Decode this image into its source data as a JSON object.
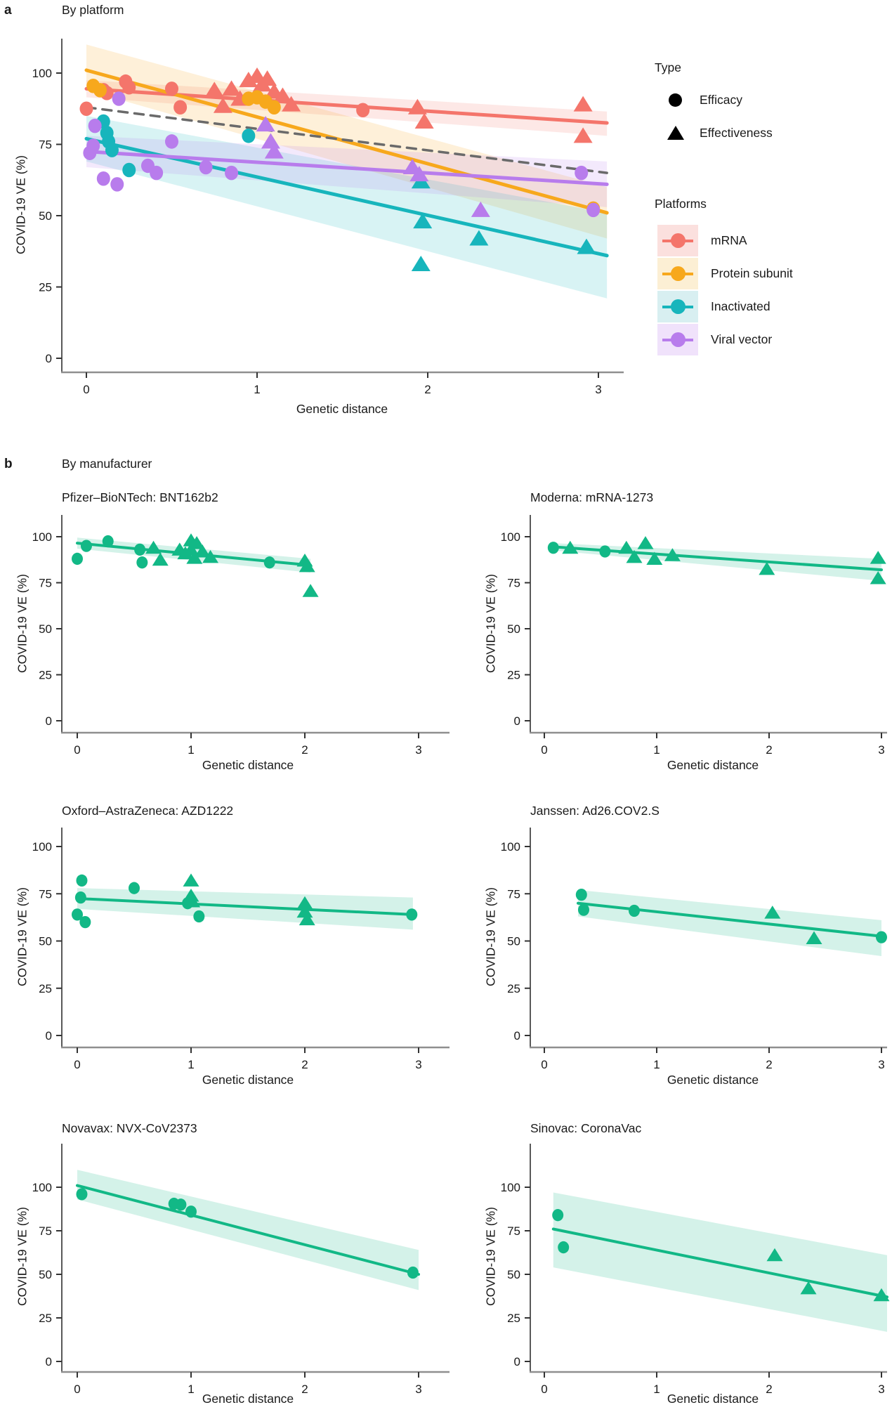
{
  "figure": {
    "panel_a": {
      "label": "a",
      "title": "By platform"
    },
    "panel_b": {
      "label": "b",
      "title": "By manufacturer"
    },
    "axis": {
      "x_label": "Genetic distance",
      "y_label": "COVID-19 VE (%)"
    },
    "legend": {
      "type": {
        "title": "Type",
        "items": [
          {
            "label": "Efficacy",
            "marker": "circle"
          },
          {
            "label": "Effectiveness",
            "marker": "triangle"
          }
        ]
      },
      "platforms": {
        "title": "Platforms",
        "items": [
          {
            "label": "mRNA",
            "color": "#F4756B",
            "bg": "#FBE0DE"
          },
          {
            "label": "Protein subunit",
            "color": "#F7A81C",
            "bg": "#FCEFD4"
          },
          {
            "label": "Inactivated",
            "color": "#17B5BC",
            "bg": "#D8EFF1"
          },
          {
            "label": "Viral vector",
            "color": "#B87CEC",
            "bg": "#F0E2FB"
          }
        ]
      }
    }
  },
  "chart_data": [
    {
      "id": "by-platform",
      "type": "scatter",
      "title": "By platform",
      "xlabel": "Genetic distance",
      "ylabel": "COVID-19 VE (%)",
      "xticks": [
        0,
        1,
        2,
        3
      ],
      "yticks": [
        0,
        25,
        50,
        75,
        100
      ],
      "xlim": [
        -0.15,
        3.25
      ],
      "ylim": [
        -5,
        112
      ],
      "marker_meaning": {
        "circle": "Efficacy",
        "triangle": "Effectiveness"
      },
      "overall_trend": {
        "style": "dashed",
        "color": "#6A6A6A",
        "x": [
          0,
          3.05
        ],
        "y": [
          88,
          65
        ]
      },
      "series": [
        {
          "name": "mRNA",
          "color": "#F4756B",
          "efficacy": [
            [
              0,
              87.5
            ],
            [
              0.1,
              94
            ],
            [
              0.12,
              93
            ],
            [
              0.23,
              97
            ],
            [
              0.25,
              95
            ],
            [
              0.5,
              94.5
            ],
            [
              0.55,
              88
            ],
            [
              1.62,
              87
            ]
          ],
          "effectiveness": [
            [
              0.75,
              94
            ],
            [
              0.8,
              88.5
            ],
            [
              0.85,
              94.5
            ],
            [
              0.9,
              91
            ],
            [
              0.95,
              97.5
            ],
            [
              1.0,
              99
            ],
            [
              1.03,
              96
            ],
            [
              1.06,
              98
            ],
            [
              1.1,
              93.5
            ],
            [
              1.15,
              92
            ],
            [
              1.2,
              89
            ],
            [
              1.94,
              88
            ],
            [
              1.98,
              83
            ],
            [
              2.91,
              89
            ],
            [
              2.91,
              78
            ]
          ],
          "trend": {
            "x": [
              0,
              3.05
            ],
            "y": [
              94.5,
              82.5
            ],
            "band_high": [
              97.5,
              86.5
            ],
            "band_low": [
              91.5,
              78
            ]
          }
        },
        {
          "name": "Protein subunit",
          "color": "#F7A81C",
          "efficacy": [
            [
              0.04,
              95.5
            ],
            [
              0.08,
              94
            ],
            [
              0.95,
              91
            ],
            [
              1.0,
              91.5
            ],
            [
              1.05,
              90
            ],
            [
              1.1,
              88
            ],
            [
              2.97,
              52.5
            ]
          ],
          "effectiveness": [],
          "trend": {
            "x": [
              0,
              3.05
            ],
            "y": [
              101,
              51
            ],
            "band_high": [
              110,
              60
            ],
            "band_low": [
              94,
              42
            ]
          }
        },
        {
          "name": "Inactivated",
          "color": "#17B5BC",
          "efficacy": [
            [
              0.1,
              83
            ],
            [
              0.12,
              79
            ],
            [
              0.13,
              76
            ],
            [
              0.15,
              73
            ],
            [
              0.25,
              66
            ],
            [
              0.95,
              78
            ]
          ],
          "effectiveness": [
            [
              1.96,
              62
            ],
            [
              1.97,
              48
            ],
            [
              1.96,
              33
            ],
            [
              2.3,
              42
            ],
            [
              2.93,
              39
            ]
          ],
          "trend": {
            "x": [
              0,
              3.05
            ],
            "y": [
              77,
              36
            ],
            "band_high": [
              85,
              51
            ],
            "band_low": [
              69,
              21
            ]
          }
        },
        {
          "name": "Viral vector",
          "color": "#B87CEC",
          "efficacy": [
            [
              0.02,
              72
            ],
            [
              0.04,
              74.5
            ],
            [
              0.05,
              81.5
            ],
            [
              0.1,
              63
            ],
            [
              0.18,
              61
            ],
            [
              0.19,
              91
            ],
            [
              0.36,
              67.5
            ],
            [
              0.41,
              65
            ],
            [
              0.5,
              76
            ],
            [
              0.7,
              67
            ],
            [
              0.85,
              65
            ],
            [
              2.9,
              65
            ],
            [
              2.97,
              52
            ]
          ],
          "effectiveness": [
            [
              1.05,
              82
            ],
            [
              1.08,
              76
            ],
            [
              1.1,
              72.5
            ],
            [
              1.91,
              67
            ],
            [
              1.95,
              64.5
            ],
            [
              2.31,
              52
            ]
          ],
          "trend": {
            "x": [
              0,
              3.05
            ],
            "y": [
              72.5,
              61
            ],
            "band_high": [
              78,
              69
            ],
            "band_low": [
              67,
              53
            ]
          }
        }
      ]
    },
    {
      "id": "pfizer",
      "type": "scatter",
      "title": "Pfizer–BioNTech: BNT162b2",
      "xlabel": "Genetic distance",
      "ylabel": "COVID-19 VE (%)",
      "xticks": [
        0,
        1,
        2,
        3
      ],
      "yticks": [
        0,
        25,
        50,
        75,
        100
      ],
      "color": "#12B886",
      "efficacy": [
        [
          0,
          88
        ],
        [
          0.08,
          95
        ],
        [
          0.27,
          97.5
        ],
        [
          0.55,
          93
        ],
        [
          0.57,
          86
        ],
        [
          1.69,
          86
        ]
      ],
      "effectiveness": [
        [
          0.67,
          94
        ],
        [
          0.73,
          87.5
        ],
        [
          0.9,
          93
        ],
        [
          0.95,
          91
        ],
        [
          1.0,
          98
        ],
        [
          1.0,
          93
        ],
        [
          1.03,
          88.5
        ],
        [
          1.05,
          96.5
        ],
        [
          1.1,
          92
        ],
        [
          1.17,
          89
        ],
        [
          2.0,
          87
        ],
        [
          2.02,
          84
        ],
        [
          2.05,
          70.5
        ]
      ],
      "trend": {
        "x": [
          0,
          2.05
        ],
        "y": [
          96.5,
          84.5
        ],
        "band_high": [
          99.5,
          88
        ],
        "band_low": [
          93.5,
          80.5
        ]
      }
    },
    {
      "id": "moderna",
      "type": "scatter",
      "title": "Moderna: mRNA-1273",
      "xlabel": "Genetic distance",
      "ylabel": "COVID-19 VE (%)",
      "xticks": [
        0,
        1,
        2,
        3
      ],
      "yticks": [
        0,
        25,
        50,
        75,
        100
      ],
      "color": "#12B886",
      "efficacy": [
        [
          0.08,
          94
        ],
        [
          0.54,
          92
        ]
      ],
      "effectiveness": [
        [
          0.23,
          94
        ],
        [
          0.73,
          94
        ],
        [
          0.8,
          89
        ],
        [
          0.9,
          96.5
        ],
        [
          0.98,
          88
        ],
        [
          1.14,
          90
        ],
        [
          1.98,
          82.5
        ],
        [
          2.97,
          88.5
        ],
        [
          2.97,
          77.5
        ]
      ],
      "trend": {
        "x": [
          0.08,
          3.0
        ],
        "y": [
          94.5,
          82
        ],
        "band_high": [
          96.5,
          88
        ],
        "band_low": [
          92.5,
          76
        ]
      }
    },
    {
      "id": "astrazeneca",
      "type": "scatter",
      "title": "Oxford–AstraZeneca: AZD1222",
      "xlabel": "Genetic distance",
      "ylabel": "COVID-19 VE (%)",
      "xticks": [
        0,
        1,
        2,
        3
      ],
      "yticks": [
        0,
        25,
        50,
        75,
        100
      ],
      "color": "#12B886",
      "efficacy": [
        [
          0.04,
          82
        ],
        [
          0.03,
          73
        ],
        [
          0.0,
          64
        ],
        [
          0.07,
          60
        ],
        [
          0.5,
          78
        ],
        [
          0.97,
          70
        ],
        [
          1.07,
          63
        ],
        [
          2.94,
          64
        ]
      ],
      "effectiveness": [
        [
          1.0,
          82
        ],
        [
          1.0,
          74
        ],
        [
          1.01,
          71
        ],
        [
          2.0,
          70
        ],
        [
          2.0,
          65.5
        ],
        [
          2.02,
          61.5
        ]
      ],
      "trend": {
        "x": [
          0,
          2.95
        ],
        "y": [
          72.5,
          64
        ],
        "band_high": [
          78,
          73
        ],
        "band_low": [
          67,
          56
        ]
      }
    },
    {
      "id": "janssen",
      "type": "scatter",
      "title": "Janssen: Ad26.COV2.S",
      "xlabel": "Genetic distance",
      "ylabel": "COVID-19 VE (%)",
      "xticks": [
        0,
        1,
        2,
        3
      ],
      "yticks": [
        0,
        25,
        50,
        75,
        100
      ],
      "color": "#12B886",
      "efficacy": [
        [
          0.33,
          74.5
        ],
        [
          0.35,
          66.5
        ],
        [
          0.8,
          66
        ],
        [
          3.0,
          52
        ]
      ],
      "effectiveness": [
        [
          2.03,
          65
        ],
        [
          2.4,
          51.5
        ]
      ],
      "trend": {
        "x": [
          0.3,
          3.0
        ],
        "y": [
          70,
          52.5
        ],
        "band_high": [
          77,
          61
        ],
        "band_low": [
          63,
          42
        ]
      }
    },
    {
      "id": "novavax",
      "type": "scatter",
      "title": "Novavax: NVX-CoV2373",
      "xlabel": "Genetic distance",
      "ylabel": "COVID-19 VE (%)",
      "xticks": [
        0,
        1,
        2,
        3
      ],
      "yticks": [
        0,
        25,
        50,
        75,
        100
      ],
      "color": "#12B886",
      "efficacy": [
        [
          0.04,
          96
        ],
        [
          0.85,
          90.5
        ],
        [
          0.91,
          90
        ],
        [
          1.0,
          86
        ],
        [
          2.95,
          51
        ]
      ],
      "effectiveness": [],
      "trend": {
        "x": [
          0,
          3.0
        ],
        "y": [
          101,
          50
        ],
        "band_high": [
          110,
          64
        ],
        "band_low": [
          93,
          41
        ]
      }
    },
    {
      "id": "sinovac",
      "type": "scatter",
      "title": "Sinovac: CoronaVac",
      "xlabel": "Genetic distance",
      "ylabel": "COVID-19 VE (%)",
      "xticks": [
        0,
        1,
        2,
        3
      ],
      "yticks": [
        0,
        25,
        50,
        75,
        100
      ],
      "color": "#12B886",
      "efficacy": [
        [
          0.12,
          84
        ],
        [
          0.17,
          65.5
        ]
      ],
      "effectiveness": [
        [
          2.05,
          61
        ],
        [
          2.35,
          42
        ],
        [
          3.0,
          38
        ]
      ],
      "trend": {
        "x": [
          0.08,
          3.05
        ],
        "y": [
          76,
          37
        ],
        "band_high": [
          97,
          61
        ],
        "band_low": [
          54,
          17
        ]
      }
    }
  ]
}
